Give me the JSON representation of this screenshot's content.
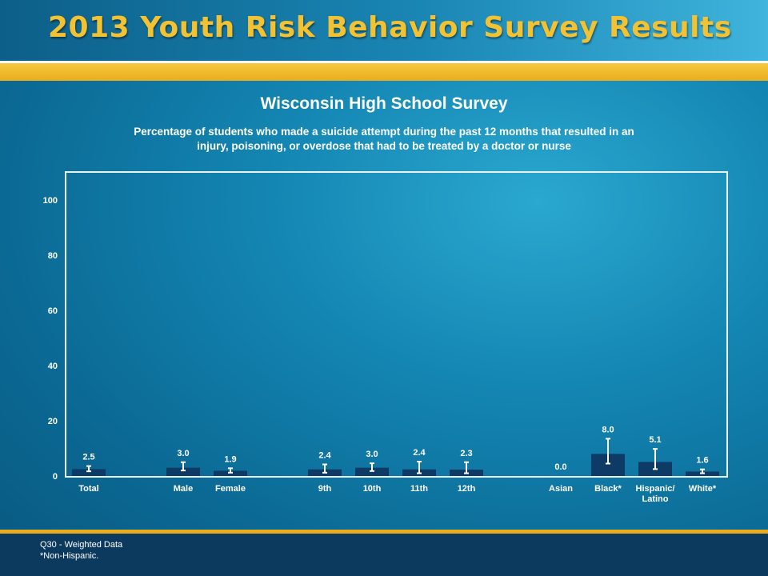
{
  "header": {
    "title": "2013 Youth Risk Behavior Survey Results"
  },
  "footer": {
    "note1": "Q30 - Weighted Data",
    "note2": "*Non-Hispanic."
  },
  "colors": {
    "bar": "#0d3b66",
    "gold": "#f2c233"
  },
  "chart_data": {
    "type": "bar",
    "title": "Wisconsin High School Survey",
    "subtitle": "Percentage of students who made a suicide attempt during the past 12 months that resulted in an injury, poisoning, or overdose that had to be treated by a doctor or nurse",
    "ylim": [
      0,
      100
    ],
    "yticks": [
      0,
      20,
      40,
      60,
      80,
      100
    ],
    "grid": false,
    "bars": [
      {
        "label": "Total",
        "value": 2.5,
        "value_label": "2.5",
        "ci": [
          1.7,
          3.6
        ]
      },
      {
        "label": "Male",
        "value": 3.0,
        "value_label": "3.0",
        "ci": [
          2.0,
          5.0
        ]
      },
      {
        "label": "Female",
        "value": 1.9,
        "value_label": "1.9",
        "ci": [
          1.2,
          2.8
        ]
      },
      {
        "label": "9th",
        "value": 2.4,
        "value_label": "2.4",
        "ci": [
          1.2,
          4.2
        ]
      },
      {
        "label": "10th",
        "value": 3.0,
        "value_label": "3.0",
        "ci": [
          1.8,
          4.6
        ]
      },
      {
        "label": "11th",
        "value": 2.4,
        "value_label": "2.4",
        "ci": [
          1.0,
          5.2
        ]
      },
      {
        "label": "12th",
        "value": 2.3,
        "value_label": "2.3",
        "ci": [
          1.0,
          5.0
        ]
      },
      {
        "label": "Asian",
        "value": 0.0,
        "value_label": "0.0",
        "ci": null
      },
      {
        "label": "Black*",
        "value": 8.0,
        "value_label": "8.0",
        "ci": [
          4.5,
          13.5
        ]
      },
      {
        "label": "Hispanic/",
        "label2": "Latino",
        "value": 5.1,
        "value_label": "5.1",
        "ci": [
          2.5,
          9.8
        ]
      },
      {
        "label": "White*",
        "value": 1.6,
        "value_label": "1.6",
        "ci": [
          1.0,
          2.4
        ]
      }
    ]
  }
}
